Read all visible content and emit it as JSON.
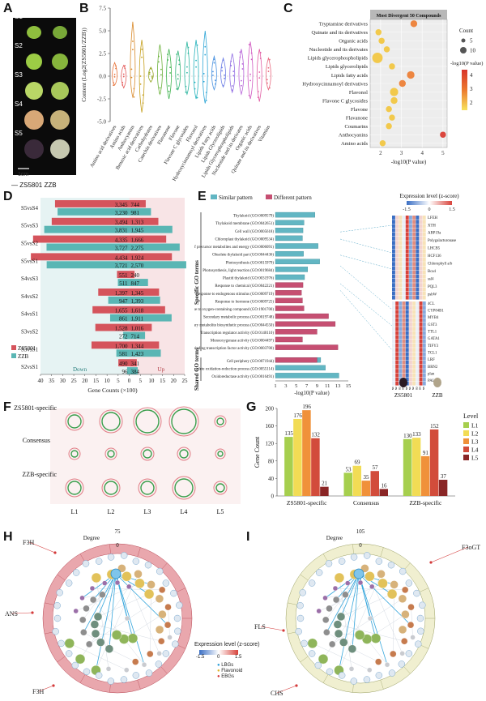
{
  "panels": {
    "A": {
      "label": "A",
      "stages": [
        "S1",
        "S2",
        "S3",
        "S4",
        "S5"
      ],
      "scale": "1cm",
      "legend": "— ZS5801 ZZB"
    },
    "B": {
      "label": "B",
      "ylabel": "Content (Log2(ZS5801/ZZB))"
    },
    "C": {
      "label": "C",
      "header": "Most Divergent 50 Compounds",
      "xlabel": "-log10(P value)",
      "legend_count": "Count",
      "legend_count_vals": [
        "5",
        "10"
      ],
      "legend_color": "-log10(P value)",
      "legend_color_vals": [
        "4",
        "3",
        "2"
      ]
    },
    "D": {
      "label": "D",
      "xlabel": "Gene Counts (×100)",
      "down": "Down",
      "up": "Up",
      "legend": [
        "ZS5801",
        "ZZB"
      ]
    },
    "E": {
      "label": "E",
      "legend": [
        "Similar pattern",
        "Different pattern"
      ],
      "expr_title": "Expression level (z-score)",
      "expr_ticks": [
        "-1.5",
        "0",
        "1.5"
      ],
      "xlabel": "-log10(P value)",
      "side1": "Specific GO terms",
      "side2": "Shared GO terms",
      "cultivars": [
        "ZS5801",
        "ZZB"
      ]
    },
    "F": {
      "label": "F",
      "rows": [
        "ZS5801-specific",
        "Consensus",
        "ZZB-specific"
      ],
      "cols": [
        "L1",
        "L2",
        "L3",
        "L4",
        "L5"
      ]
    },
    "G": {
      "label": "G",
      "ylabel": "Gene Count",
      "legend_title": "Level"
    },
    "H": {
      "label": "H",
      "degree": "Degree",
      "deg_val": "75",
      "deg_min": "0",
      "callouts": [
        "F3H",
        "ANS",
        "F3H"
      ]
    },
    "I": {
      "label": "I",
      "degree": "Degree",
      "deg_val": "105",
      "deg_min": "0",
      "callouts": [
        "F3oGT",
        "FLS",
        "CHS"
      ]
    },
    "HI_legend": {
      "title": "Expression level (z-score)",
      "ticks": [
        "-1.5",
        "0",
        "1.5"
      ],
      "items": [
        "LBGs",
        "Flavonoid",
        "EBGs"
      ]
    }
  },
  "chart_data": [
    {
      "type": "scatter",
      "panel": "B",
      "categories": [
        "Amino acid derivatives",
        "Amino acids",
        "Anthocyanins",
        "Benzoic acid derivatives",
        "Carbohydrates",
        "Catechin derivatives",
        "Flavanone",
        "Flavone",
        "Flavone C glycosides",
        "Flavonol",
        "Hydroxycinnamoyl derivatives",
        "Lipids Fatty acids",
        "Lipids Glycerolipids",
        "Lipids Glycerophospholipids",
        "Nucleotide and its derivates",
        "Organic acids",
        "Quinate and its derivatives",
        "Vitamins"
      ],
      "ylim": [
        -5,
        7.5
      ],
      "yticks": [
        "-5.0",
        "-2.5",
        "0.0",
        "2.5",
        "5.0",
        "7.5"
      ],
      "colors": [
        "#e8743b",
        "#e45d5d",
        "#d98a2a",
        "#c6a01d",
        "#9aa82a",
        "#6bb13a",
        "#3fb34f",
        "#35b57a",
        "#2cb6a0",
        "#28b3bd",
        "#2fa6d6",
        "#4b93e0",
        "#6e7fe6",
        "#9370e4",
        "#b663d8",
        "#d15bc2",
        "#e15aa2",
        "#e86a80"
      ]
    },
    {
      "type": "scatter",
      "panel": "C",
      "categories": [
        "Tryptamine derivatives",
        "Quinate and its derivatives",
        "Organic acids",
        "Nucleotide and its derivates",
        "Lipids glycerophospholipids",
        "Lipids glycerolipids",
        "Lipids fatty acids",
        "Hydroxycinnamoyl derivatives",
        "Flavonol",
        "Flavone C glycosides",
        "Flavone",
        "Flavanone",
        "Coumarins",
        "Anthocyanins",
        "Amino acids"
      ],
      "x": [
        3.6,
        1.9,
        2.05,
        2.3,
        1.85,
        2.55,
        3.45,
        3.05,
        2.65,
        2.65,
        2.4,
        2.55,
        2.4,
        5.0,
        2.1
      ],
      "count": [
        6,
        5,
        5,
        5,
        11,
        5,
        7,
        6,
        8,
        6,
        5,
        5,
        5,
        5,
        5
      ],
      "xlim": [
        1.5,
        5.2
      ],
      "xticks": [
        "2",
        "3",
        "4",
        "5"
      ]
    },
    {
      "type": "bar",
      "panel": "D",
      "categories": [
        "S5vsS4",
        "S5vsS3",
        "S5vsS2",
        "S5vsS1",
        "S4vsS3",
        "S4vsS2",
        "S4vsS1",
        "S3vsS2",
        "S3vsS1",
        "S2vsS1"
      ],
      "series": [
        {
          "name": "ZS5801",
          "down": [
            3345,
            3494,
            4335,
            4434,
            551,
            1397,
            1655,
            1528,
            1700,
            490
          ],
          "up": [
            744,
            1313,
            1666,
            1924,
            240,
            1345,
            1618,
            1016,
            1344,
            341
          ]
        },
        {
          "name": "ZZB",
          "down": [
            3230,
            3831,
            3727,
            3721,
            511,
            947,
            861,
            272,
            581,
            96
          ],
          "up": [
            981,
            1945,
            2275,
            2570,
            847,
            1393,
            1911,
            714,
            1423,
            384
          ]
        }
      ],
      "down_labels_z": [
        "3,345",
        "3,494",
        "4,335",
        "4,434",
        "551",
        "1,397",
        "1,655",
        "1,528",
        "1,700",
        "490"
      ],
      "up_labels_z": [
        "744",
        "1,313",
        "1,666",
        "1,924",
        "240",
        "1,345",
        "1,618",
        "1,016",
        "1,344",
        "341"
      ],
      "down_labels_b": [
        "3,230",
        "3,831",
        "3,727",
        "3,721",
        "511",
        "947",
        "861",
        "272",
        "581",
        "96"
      ],
      "up_labels_b": [
        "981",
        "1,945",
        "2,275",
        "2,570",
        "847",
        "1,393",
        "1,911",
        "714",
        "1,423",
        "384"
      ],
      "xticks": [
        "40",
        "35",
        "30",
        "25",
        "20",
        "15",
        "10",
        "5",
        "0",
        "5",
        "10",
        "15",
        "20",
        "25"
      ]
    },
    {
      "type": "bar",
      "panel": "E",
      "categories": [
        "Thylakoid (GO:0009579)",
        "Thylakoid membrane (GO:0042651)",
        "Cell wall (GO:0005618)",
        "Chloroplast thylakoid (GO:0009534)",
        "Generation of precursor metabolites and energy (GO:0006091)",
        "Obsolete thylakoid part (GO:0044436)",
        "Photosynthesis (GO:0015979)",
        "Photosynthesis, light reaction (GO:0019684)",
        "Plastid thylakoid (GO:0031976)",
        "Response to chemical (GO:0042221)",
        "Response to endogenous stimulus (GO:0009719)",
        "Response to hormone (GO:0009725)",
        "Response to oxygen-containing compound (GO:1901700)",
        "Secondary metabolic process (GO:0019748)",
        "Secondary metabolite biosynthetic process (GO:0044550)",
        "Transcription regulator activity (GO:0140110)",
        "Monooxygenase activity (GO:0004497)",
        "DNA-binding transcription factor activity (GO:0003700)",
        "Cell periphery (GO:0071944)",
        "Obsolete oxidation-reduction process (GO:0055114)",
        "Oxidoreductase activity (GO:0016491)"
      ],
      "similar": [
        8.6,
        6.5,
        6.3,
        6.2,
        9.2,
        6.4,
        9.5,
        7.2,
        6.6,
        0,
        0,
        0,
        0,
        0,
        0,
        0,
        0,
        0,
        9.7,
        10.6,
        13.2
      ],
      "different": [
        0,
        0,
        0,
        0,
        0,
        0,
        0,
        0,
        0,
        6.3,
        6.0,
        6.2,
        6.5,
        11.2,
        12.5,
        9.0,
        6.2,
        13.0,
        9.0,
        0,
        0
      ],
      "xticks": [
        "1",
        "3",
        "5",
        "7",
        "9",
        "11",
        "13",
        "15"
      ],
      "genes1": [
        "LFEH",
        "XTH",
        "ABP19a",
        "Polygalacturonase",
        "LHCB5",
        "HCF136",
        "Chlorophyll a/b",
        "Bca4",
        "ssl4",
        "PQL3",
        "psbW"
      ],
      "genes2": [
        "4CL",
        "CYP84B1",
        "MYB4",
        "GST3",
        "TTL1",
        "GATA1",
        "TIFY3",
        "TCL1",
        "LRF",
        "BRN2",
        "plan",
        "PAL2"
      ]
    },
    {
      "type": "bar",
      "panel": "G",
      "categories": [
        "ZS5801-specific",
        "Consensus",
        "ZZB-specific"
      ],
      "series": [
        {
          "name": "L1",
          "values": [
            135,
            53,
            130
          ]
        },
        {
          "name": "L2",
          "values": [
            176,
            69,
            133
          ]
        },
        {
          "name": "L3",
          "values": [
            196,
            35,
            91
          ]
        },
        {
          "name": "L4",
          "values": [
            132,
            57,
            152
          ]
        },
        {
          "name": "L5",
          "values": [
            21,
            16,
            37
          ]
        }
      ],
      "ylim": [
        0,
        200
      ],
      "yticks": [
        "0",
        "40",
        "80",
        "120",
        "160",
        "200"
      ],
      "colors": [
        "#a6cf4e",
        "#f2dc55",
        "#f0913a",
        "#d24c3b",
        "#8a2626"
      ]
    }
  ]
}
